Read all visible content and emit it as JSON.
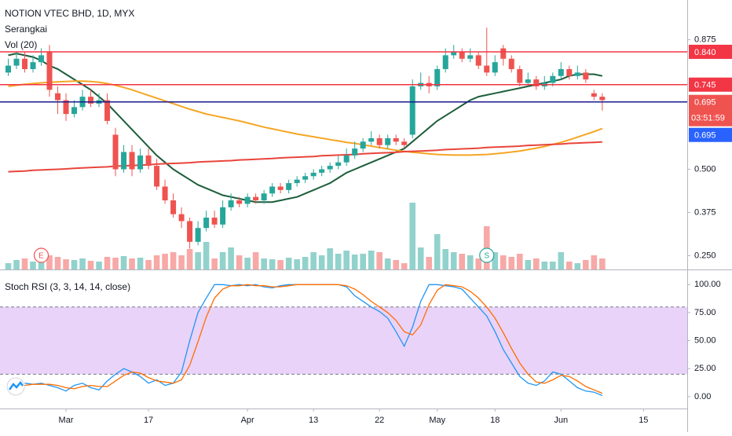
{
  "chart_data": [
    {
      "type": "candlestick",
      "title": "NOTION VTEC BHD, 1D, MYX",
      "subtitle": "Serangkai",
      "volume_label": "Vol (20)",
      "up_color": "#26a69a",
      "down_color": "#ef5350",
      "xlim": [
        -1,
        82.3
      ],
      "ylim": [
        0.21,
        0.99
      ],
      "yticks": [
        {
          "value": 0.25,
          "label": "0.250"
        },
        0.375,
        {
          "value": 0.5,
          "label": "0.500"
        },
        0.875
      ],
      "open": [
        0.78,
        0.8,
        0.82,
        0.79,
        0.81,
        0.84,
        0.72,
        0.7,
        0.66,
        0.68,
        0.71,
        0.69,
        0.7,
        0.6,
        0.5,
        0.55,
        0.5,
        0.54,
        0.51,
        0.45,
        0.41,
        0.37,
        0.35,
        0.29,
        0.33,
        0.36,
        0.34,
        0.39,
        0.41,
        0.4,
        0.42,
        0.41,
        0.43,
        0.45,
        0.44,
        0.46,
        0.47,
        0.48,
        0.49,
        0.5,
        0.51,
        0.52,
        0.54,
        0.56,
        0.58,
        0.59,
        0.57,
        0.59,
        0.58,
        0.6,
        0.74,
        0.75,
        0.74,
        0.79,
        0.83,
        0.84,
        0.82,
        0.83,
        0.8,
        0.78,
        0.85,
        0.82,
        0.79,
        0.75,
        0.76,
        0.74,
        0.75,
        0.77,
        0.79,
        0.77,
        0.78,
        0.72,
        0.71
      ],
      "high": [
        0.82,
        0.84,
        0.84,
        0.83,
        0.85,
        0.86,
        0.74,
        0.72,
        0.7,
        0.73,
        0.73,
        0.72,
        0.72,
        0.62,
        0.57,
        0.57,
        0.56,
        0.56,
        0.53,
        0.47,
        0.43,
        0.39,
        0.36,
        0.35,
        0.38,
        0.38,
        0.41,
        0.43,
        0.42,
        0.43,
        0.43,
        0.44,
        0.46,
        0.46,
        0.47,
        0.48,
        0.49,
        0.5,
        0.51,
        0.52,
        0.54,
        0.56,
        0.58,
        0.59,
        0.61,
        0.6,
        0.6,
        0.6,
        0.59,
        0.76,
        0.78,
        0.77,
        0.8,
        0.85,
        0.86,
        0.85,
        0.85,
        0.84,
        0.91,
        0.83,
        0.86,
        0.83,
        0.8,
        0.78,
        0.77,
        0.77,
        0.78,
        0.81,
        0.8,
        0.8,
        0.79,
        0.73,
        0.72
      ],
      "low": [
        0.77,
        0.79,
        0.78,
        0.78,
        0.8,
        0.71,
        0.66,
        0.64,
        0.65,
        0.67,
        0.68,
        0.68,
        0.63,
        0.48,
        0.49,
        0.48,
        0.49,
        0.5,
        0.44,
        0.4,
        0.36,
        0.33,
        0.27,
        0.28,
        0.32,
        0.33,
        0.33,
        0.38,
        0.39,
        0.39,
        0.4,
        0.4,
        0.42,
        0.43,
        0.43,
        0.45,
        0.46,
        0.47,
        0.48,
        0.49,
        0.5,
        0.51,
        0.53,
        0.55,
        0.57,
        0.56,
        0.56,
        0.57,
        0.56,
        0.59,
        0.73,
        0.72,
        0.73,
        0.78,
        0.82,
        0.81,
        0.81,
        0.79,
        0.77,
        0.77,
        0.8,
        0.78,
        0.74,
        0.74,
        0.73,
        0.73,
        0.74,
        0.76,
        0.76,
        0.76,
        0.75,
        0.7,
        0.67
      ],
      "close": [
        0.8,
        0.82,
        0.79,
        0.81,
        0.83,
        0.73,
        0.7,
        0.66,
        0.68,
        0.71,
        0.69,
        0.7,
        0.64,
        0.5,
        0.55,
        0.5,
        0.54,
        0.51,
        0.45,
        0.41,
        0.37,
        0.35,
        0.29,
        0.33,
        0.36,
        0.34,
        0.39,
        0.41,
        0.4,
        0.42,
        0.41,
        0.43,
        0.45,
        0.44,
        0.46,
        0.47,
        0.48,
        0.49,
        0.5,
        0.51,
        0.52,
        0.54,
        0.56,
        0.58,
        0.59,
        0.57,
        0.59,
        0.58,
        0.57,
        0.74,
        0.75,
        0.74,
        0.79,
        0.83,
        0.84,
        0.82,
        0.83,
        0.8,
        0.78,
        0.81,
        0.82,
        0.79,
        0.75,
        0.76,
        0.74,
        0.75,
        0.77,
        0.79,
        0.77,
        0.78,
        0.76,
        0.71,
        0.7
      ],
      "volume": [
        8,
        12,
        14,
        10,
        9,
        18,
        16,
        13,
        12,
        14,
        11,
        10,
        16,
        15,
        17,
        14,
        15,
        12,
        18,
        20,
        22,
        18,
        26,
        22,
        35,
        14,
        22,
        28,
        18,
        15,
        22,
        14,
        13,
        12,
        15,
        13,
        16,
        22,
        18,
        27,
        20,
        24,
        19,
        20,
        24,
        22,
        14,
        12,
        8,
        85,
        28,
        16,
        45,
        26,
        22,
        20,
        18,
        14,
        55,
        22,
        18,
        16,
        20,
        12,
        14,
        10,
        10,
        22,
        10,
        8,
        12,
        18,
        14
      ],
      "lines": [
        {
          "color": "#1b5e3a",
          "values": [
            0.83,
            0.835,
            0.83,
            0.825,
            0.815,
            0.8,
            0.79,
            0.775,
            0.76,
            0.745,
            0.73,
            0.71,
            0.69,
            0.665,
            0.64,
            0.615,
            0.59,
            0.565,
            0.54,
            0.52,
            0.5,
            0.485,
            0.47,
            0.455,
            0.445,
            0.435,
            0.425,
            0.42,
            0.415,
            0.41,
            0.405,
            0.405,
            0.405,
            0.41,
            0.415,
            0.42,
            0.43,
            0.44,
            0.45,
            0.46,
            0.475,
            0.49,
            0.5,
            0.51,
            0.52,
            0.53,
            0.54,
            0.55,
            0.56,
            0.58,
            0.6,
            0.62,
            0.64,
            0.655,
            0.67,
            0.685,
            0.7,
            0.71,
            0.715,
            0.72,
            0.725,
            0.73,
            0.735,
            0.74,
            0.745,
            0.75,
            0.755,
            0.76,
            0.77,
            0.775,
            0.775,
            0.775,
            0.77
          ]
        },
        {
          "color": "#f5a623",
          "values": [
            0.74,
            0.743,
            0.746,
            0.748,
            0.75,
            0.752,
            0.753,
            0.754,
            0.755,
            0.755,
            0.754,
            0.752,
            0.748,
            0.743,
            0.737,
            0.73,
            0.722,
            0.714,
            0.706,
            0.698,
            0.69,
            0.682,
            0.674,
            0.667,
            0.66,
            0.655,
            0.65,
            0.645,
            0.64,
            0.634,
            0.628,
            0.622,
            0.617,
            0.612,
            0.607,
            0.602,
            0.598,
            0.594,
            0.59,
            0.586,
            0.582,
            0.578,
            0.575,
            0.571,
            0.567,
            0.563,
            0.559,
            0.555,
            0.552,
            0.549,
            0.547,
            0.545,
            0.543,
            0.542,
            0.541,
            0.541,
            0.541,
            0.542,
            0.543,
            0.545,
            0.547,
            0.55,
            0.553,
            0.557,
            0.561,
            0.566,
            0.572,
            0.578,
            0.585,
            0.593,
            0.601,
            0.609,
            0.618
          ]
        },
        {
          "color": "#e8453c",
          "values": [
            0.493,
            0.494,
            0.495,
            0.497,
            0.498,
            0.499,
            0.5,
            0.501,
            0.503,
            0.504,
            0.505,
            0.506,
            0.507,
            0.509,
            0.51,
            0.511,
            0.512,
            0.513,
            0.515,
            0.516,
            0.517,
            0.518,
            0.519,
            0.521,
            0.522,
            0.523,
            0.524,
            0.525,
            0.527,
            0.528,
            0.529,
            0.53,
            0.531,
            0.533,
            0.534,
            0.535,
            0.536,
            0.537,
            0.539,
            0.54,
            0.541,
            0.542,
            0.543,
            0.545,
            0.546,
            0.547,
            0.548,
            0.549,
            0.551,
            0.552,
            0.553,
            0.554,
            0.555,
            0.557,
            0.558,
            0.559,
            0.56,
            0.561,
            0.563,
            0.564,
            0.565,
            0.566,
            0.567,
            0.569,
            0.57,
            0.571,
            0.572,
            0.573,
            0.575,
            0.576,
            0.577,
            0.578,
            0.579
          ]
        }
      ],
      "price_lines": [
        {
          "value": 0.84,
          "label": "0.840",
          "color": "#f23645"
        },
        {
          "value": 0.745,
          "label": "0.745",
          "color": "#f23645"
        },
        {
          "value": 0.695,
          "color": "#1a1a8c"
        }
      ],
      "last_price": {
        "value": 0.695,
        "label": "0.695",
        "countdown": "03:51:59",
        "color": "#ef5350"
      },
      "alert_label": {
        "label": "0.695",
        "color": "#2962ff"
      },
      "events": [
        {
          "index": 4,
          "label": "E",
          "color": "#ef5350"
        },
        {
          "index": 58,
          "label": "S",
          "color": "#26a69a"
        }
      ]
    },
    {
      "type": "line",
      "title": "Stoch RSI (3, 3, 14, 14, close)",
      "xlim": [
        -1,
        82.3
      ],
      "xticks": [
        {
          "value": 7,
          "label": "Mar"
        },
        17,
        {
          "value": 29,
          "label": "Apr"
        },
        {
          "value": 37,
          "label": "13"
        },
        {
          "value": 45,
          "label": "22"
        },
        {
          "value": 52,
          "label": "May"
        },
        {
          "value": 59,
          "label": "18"
        },
        {
          "value": 67,
          "label": "Jun"
        },
        {
          "value": 77,
          "label": "15"
        }
      ],
      "ylim": [
        -10.6,
        113.5
      ],
      "yticks": [
        {
          "value": 100,
          "label": "100.00"
        },
        {
          "value": 75,
          "label": "75.00"
        },
        {
          "value": 50,
          "label": "50.00"
        },
        {
          "value": 25,
          "label": "25.00"
        },
        {
          "value": 0,
          "label": "0.00"
        }
      ],
      "band": [
        20,
        80
      ],
      "band_color": "#e3c8f7",
      "series": [
        {
          "color": "#2196f3",
          "values": [
            null,
            null,
            12,
            11,
            12,
            10,
            8,
            5,
            10,
            12,
            8,
            6,
            14,
            20,
            25,
            22,
            18,
            12,
            15,
            10,
            12,
            22,
            50,
            75,
            88,
            100,
            100,
            99,
            100,
            99,
            100,
            98,
            97,
            99,
            100,
            100,
            100,
            100,
            100,
            100,
            100,
            98,
            90,
            85,
            80,
            76,
            70,
            58,
            45,
            62,
            85,
            100,
            100,
            99,
            98,
            96,
            88,
            80,
            72,
            58,
            42,
            30,
            18,
            12,
            10,
            14,
            22,
            20,
            14,
            8,
            5,
            4,
            1
          ]
        },
        {
          "color": "#ff6d00",
          "values": [
            null,
            null,
            10,
            11,
            11,
            11,
            10,
            8,
            7,
            9,
            10,
            9,
            9,
            14,
            19,
            22,
            21,
            17,
            14,
            13,
            12,
            15,
            28,
            49,
            71,
            88,
            96,
            99,
            99,
            100,
            99,
            99,
            98,
            98,
            99,
            100,
            100,
            100,
            100,
            100,
            100,
            99,
            96,
            91,
            85,
            80,
            75,
            68,
            58,
            55,
            64,
            82,
            95,
            100,
            99,
            98,
            94,
            88,
            80,
            70,
            57,
            43,
            30,
            20,
            13,
            12,
            15,
            19,
            18,
            14,
            9,
            6,
            3
          ]
        }
      ]
    }
  ]
}
